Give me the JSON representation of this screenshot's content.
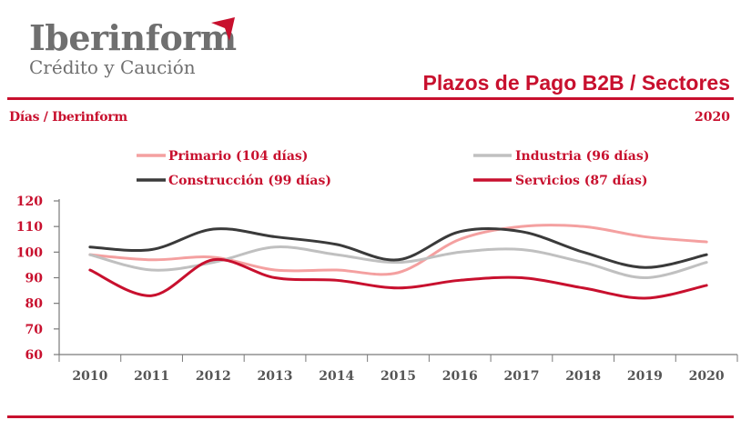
{
  "header": {
    "brand_name": "Iberinform",
    "brand_sub": "Crédito y Caución",
    "title": "Plazos de Pago B2B / Sectores",
    "subtitle_left": "Días / Iberinform",
    "subtitle_right": "2020"
  },
  "colors": {
    "accent": "#c8102e",
    "logo_grey": "#6f6f6f"
  },
  "chart_data": {
    "type": "line",
    "x": [
      "2010",
      "2011",
      "2012",
      "2013",
      "2014",
      "2015",
      "2016",
      "2017",
      "2018",
      "2019",
      "2020"
    ],
    "ylim": [
      60,
      120
    ],
    "yticks": [
      60,
      70,
      80,
      90,
      100,
      110,
      120
    ],
    "grid": false,
    "legend_position": "top",
    "series": [
      {
        "name": "Primario (104 días)",
        "color": "#f4a0a0",
        "values": [
          99,
          97,
          98,
          93,
          93,
          92,
          105,
          110,
          110,
          106,
          104
        ]
      },
      {
        "name": "Industria (96 días)",
        "color": "#c0c0c0",
        "values": [
          99,
          93,
          96,
          102,
          99,
          96,
          100,
          101,
          96,
          90,
          96
        ]
      },
      {
        "name": "Construcción (99 días)",
        "color": "#3a3a3a",
        "values": [
          102,
          101,
          109,
          106,
          103,
          97,
          108,
          108,
          100,
          94,
          99
        ]
      },
      {
        "name": "Servicios (87 días)",
        "color": "#c8102e",
        "values": [
          93,
          83,
          97,
          90,
          89,
          86,
          89,
          90,
          86,
          82,
          87
        ]
      }
    ]
  }
}
